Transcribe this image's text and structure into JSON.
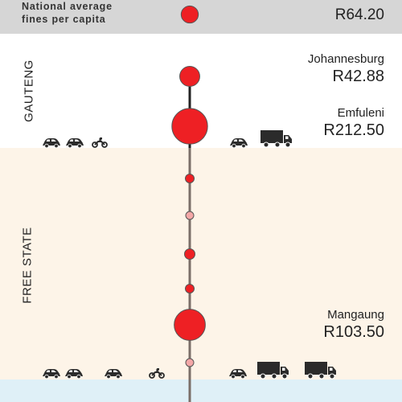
{
  "chart_data": {
    "type": "scatter",
    "title": "",
    "national": {
      "label_line1": "National average",
      "label_line2": "fines per capita",
      "value": 64.2,
      "value_label": "R64.20"
    },
    "regions": [
      {
        "name": "GAUTENG"
      },
      {
        "name": "FREE STATE"
      }
    ],
    "municipalities": [
      {
        "name": "Johannesburg",
        "value": 42.88,
        "value_label": "R42.88",
        "region": "GAUTENG"
      },
      {
        "name": "Emfuleni",
        "value": 212.5,
        "value_label": "R212.50",
        "region": "GAUTENG"
      },
      {
        "name": "Mangaung",
        "value": 103.5,
        "value_label": "R103.50",
        "region": "FREE STATE"
      }
    ],
    "colors": {
      "dot": "#ee2024",
      "dot_small_pink": "#f4a7a7",
      "national_band": "#d6d6d6",
      "freestate_band": "#fdf4e8",
      "next_band": "#dff0f7",
      "vehicle": "#2b2b2b"
    }
  },
  "vehicle_icons": {
    "gauteng_left": [
      "car-icon",
      "car-icon",
      "motorcycle-icon"
    ],
    "gauteng_right": [
      "car-icon",
      "truck-icon"
    ],
    "freestate_left": [
      "car-icon",
      "car-icon",
      "car-icon",
      "motorcycle-icon"
    ],
    "freestate_right": [
      "car-icon",
      "truck-icon",
      "truck-icon"
    ]
  }
}
